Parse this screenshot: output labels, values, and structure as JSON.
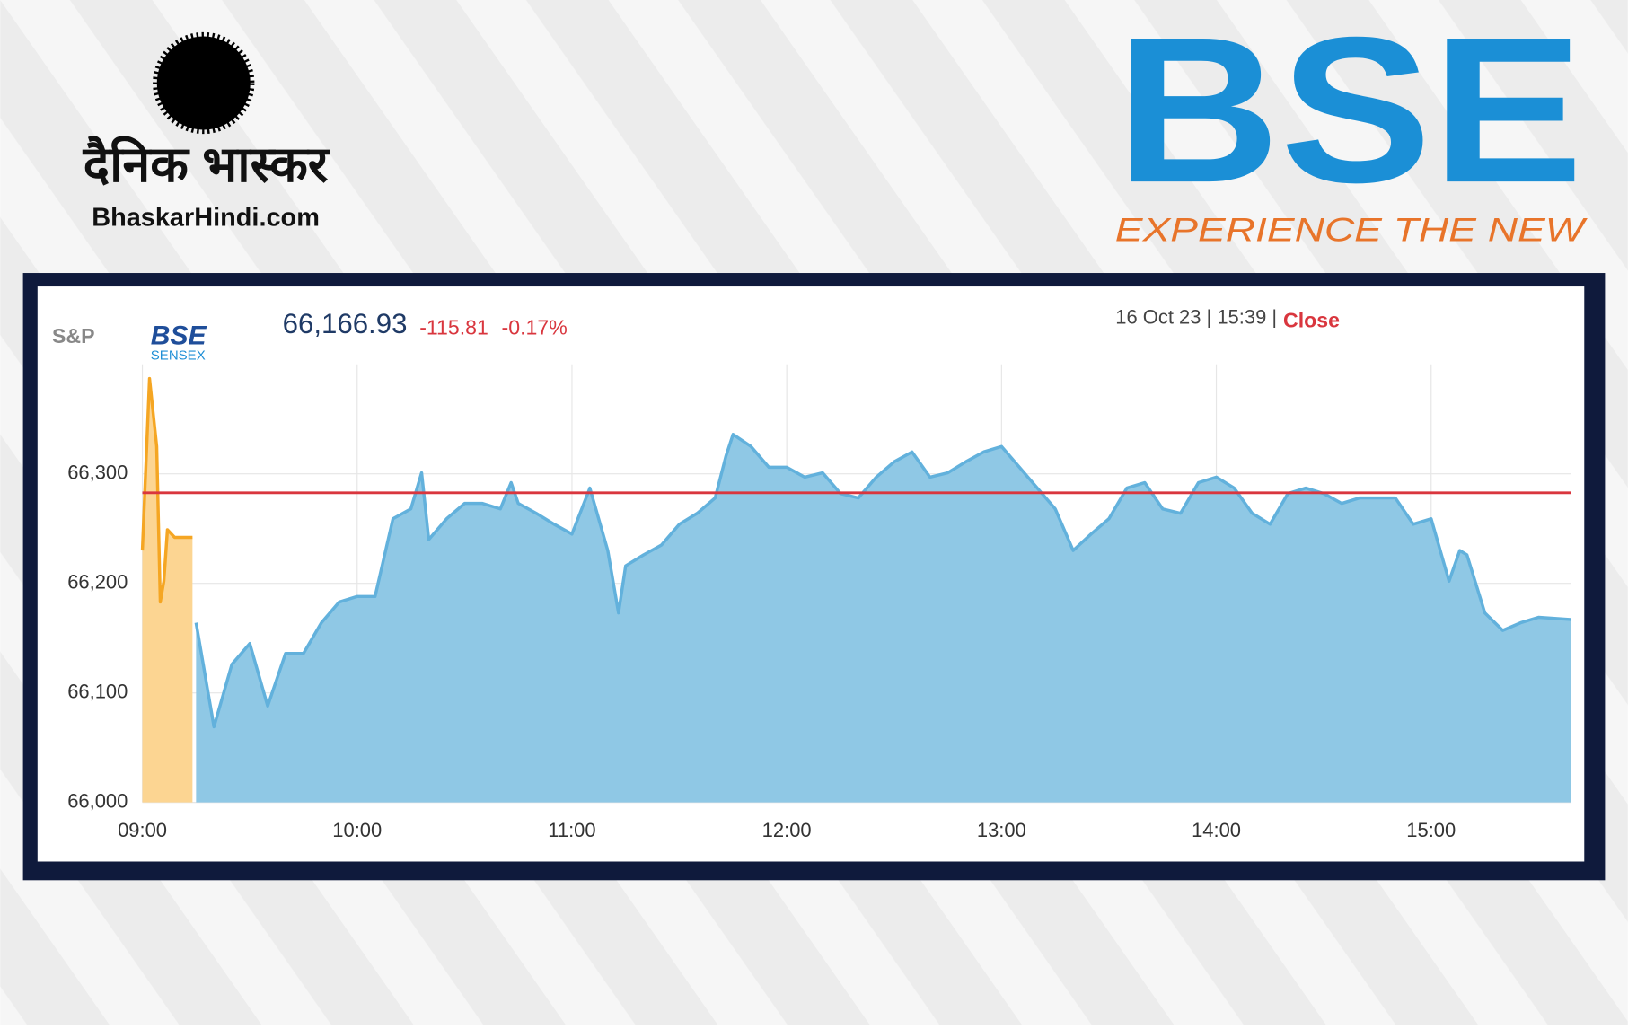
{
  "header": {
    "hindi_logo": "दैनिक भास्कर",
    "hindi_site": "BhaskarHindi.com",
    "bse_logo": "BSE",
    "bse_tagline": "EXPERIENCE THE NEW"
  },
  "widget": {
    "sp": "S&P",
    "bse": "BSE",
    "sensex": "SENSEX",
    "price": "66,166.93",
    "change": "-115.81",
    "change_pct": "-0.17%",
    "timestamp": "16 Oct 23 | 15:39 |",
    "status": "Close"
  },
  "chart_data": {
    "type": "area",
    "xlim": [
      "09:00",
      "15:39"
    ],
    "xticks": [
      "09:00",
      "10:00",
      "11:00",
      "12:00",
      "13:00",
      "14:00",
      "15:00"
    ],
    "ylim": [
      66000,
      66400
    ],
    "yticks": [
      {
        "value": 66000,
        "label": "66,000"
      },
      {
        "value": 66100,
        "label": "66,100"
      },
      {
        "value": 66200,
        "label": "66,200"
      },
      {
        "value": 66300,
        "label": "66,300"
      }
    ],
    "grid": true,
    "reference_line": {
      "value": 66282.74,
      "color": "#d9363e"
    },
    "series": [
      {
        "color": "#f5a623",
        "fill_color": "#fcd592",
        "x": [
          "09:00",
          "09:02",
          "09:04",
          "09:05",
          "09:06",
          "09:07",
          "09:09",
          "09:14"
        ],
        "values": [
          66230,
          66387,
          66325,
          66183,
          66202,
          66249,
          66242,
          66242
        ]
      },
      {
        "color": "#62b1dc",
        "fill_color": "#8fc8e5",
        "x": [
          "09:15",
          "09:17",
          "09:20",
          "09:25",
          "09:30",
          "09:35",
          "09:40",
          "09:45",
          "09:50",
          "09:55",
          "10:00",
          "10:05",
          "10:10",
          "10:15",
          "10:18",
          "10:20",
          "10:25",
          "10:30",
          "10:35",
          "10:40",
          "10:43",
          "10:45",
          "10:50",
          "10:55",
          "11:00",
          "11:05",
          "11:10",
          "11:13",
          "11:15",
          "11:20",
          "11:25",
          "11:30",
          "11:35",
          "11:40",
          "11:43",
          "11:45",
          "11:50",
          "11:55",
          "12:00",
          "12:05",
          "12:10",
          "12:15",
          "12:20",
          "12:25",
          "12:30",
          "12:35",
          "12:40",
          "12:45",
          "12:50",
          "12:55",
          "13:00",
          "13:05",
          "13:10",
          "13:15",
          "13:20",
          "13:25",
          "13:30",
          "13:35",
          "13:40",
          "13:45",
          "13:50",
          "13:55",
          "14:00",
          "14:05",
          "14:10",
          "14:15",
          "14:20",
          "14:25",
          "14:30",
          "14:35",
          "14:40",
          "14:45",
          "14:50",
          "14:55",
          "15:00",
          "15:05",
          "15:08",
          "15:10",
          "15:15",
          "15:20",
          "15:25",
          "15:30",
          "15:39"
        ],
        "values": [
          66164,
          66126,
          66069,
          66126,
          66145,
          66088,
          66136,
          66136,
          66164,
          66183,
          66188,
          66188,
          66259,
          66268,
          66301,
          66240,
          66259,
          66273,
          66273,
          66268,
          66292,
          66273,
          66264,
          66254,
          66245,
          66287,
          66230,
          66173,
          66216,
          66226,
          66235,
          66254,
          66264,
          66278,
          66316,
          66336,
          66325,
          66306,
          66306,
          66297,
          66301,
          66282,
          66278,
          66297,
          66311,
          66320,
          66297,
          66301,
          66311,
          66320,
          66325,
          66306,
          66287,
          66268,
          66230,
          66245,
          66259,
          66287,
          66292,
          66268,
          66264,
          66292,
          66297,
          66287,
          66264,
          66254,
          66282,
          66287,
          66282,
          66273,
          66278,
          66278,
          66278,
          66254,
          66259,
          66202,
          66230,
          66226,
          66173,
          66157,
          66164,
          66169,
          66167
        ]
      }
    ]
  }
}
